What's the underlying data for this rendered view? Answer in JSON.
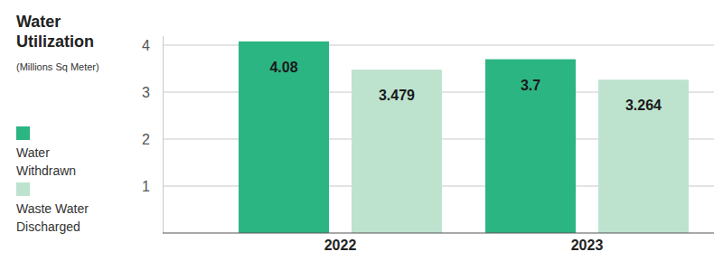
{
  "chart_data": {
    "type": "bar",
    "title": "Water Utilization",
    "subtitle": "(Millions Sq Meter)",
    "categories": [
      "2022",
      "2023"
    ],
    "series": [
      {
        "name": "Water Withdrawn",
        "color": "#2bb583",
        "values": [
          4.08,
          3.7
        ]
      },
      {
        "name": "Waste Water Discharged",
        "color": "#bde3cf",
        "values": [
          3.479,
          3.264
        ]
      }
    ],
    "ylim": [
      0,
      4.2
    ],
    "yticks": [
      1,
      2,
      3,
      4
    ],
    "grid": true,
    "data_labels": true,
    "legend": "left"
  }
}
